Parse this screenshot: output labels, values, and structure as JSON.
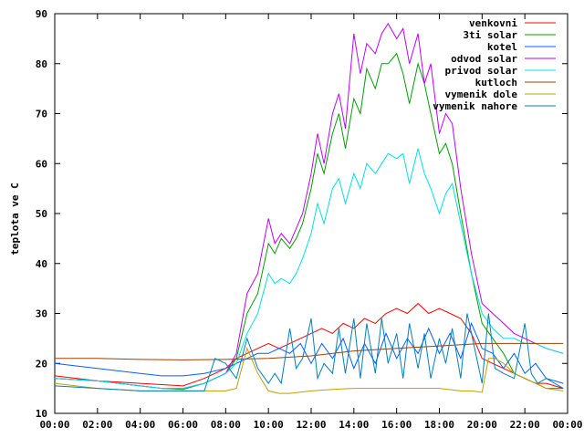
{
  "chart_data": {
    "type": "line",
    "title": "",
    "xlabel": "",
    "ylabel": "teplota ve C",
    "xlim": [
      "00:00",
      "00:00"
    ],
    "ylim": [
      10,
      90
    ],
    "x_ticks": [
      "00:00",
      "02:00",
      "04:00",
      "06:00",
      "08:00",
      "10:00",
      "12:00",
      "14:00",
      "16:00",
      "18:00",
      "20:00",
      "22:00",
      "00:00"
    ],
    "y_ticks": [
      "10",
      "20",
      "30",
      "40",
      "50",
      "60",
      "70",
      "80",
      "90"
    ],
    "grid": false,
    "legend_position": "top-right",
    "x_unit_note": "hours of day",
    "series": [
      {
        "name": "venkovni",
        "color": "#ff0000",
        "x": [
          0,
          2,
          4,
          6,
          7,
          8,
          8.5,
          9,
          9.5,
          10,
          10.5,
          11,
          11.5,
          12,
          12.5,
          13,
          13.5,
          14,
          14.5,
          15,
          15.5,
          16,
          16.5,
          17,
          17.5,
          18,
          18.5,
          19,
          19.5,
          20,
          20.5,
          21,
          21.5,
          22,
          22.5,
          23,
          23.8
        ],
        "y": [
          17.5,
          16.5,
          16,
          15.5,
          17,
          19,
          21,
          22,
          23,
          24,
          23,
          24,
          25,
          26,
          27,
          26,
          28,
          27,
          29,
          28,
          30,
          31,
          30,
          32,
          30,
          31,
          30,
          29,
          26,
          21,
          20,
          19,
          18,
          17,
          16,
          16,
          15
        ]
      },
      {
        "name": "3ti solar",
        "color": "#00a000",
        "x": [
          0,
          2,
          4,
          5,
          6,
          7,
          8,
          8.5,
          9,
          9.5,
          10,
          10.3,
          10.6,
          11,
          11.3,
          11.6,
          12,
          12.3,
          12.6,
          13,
          13.3,
          13.6,
          14,
          14.3,
          14.6,
          15,
          15.3,
          15.6,
          16,
          16.3,
          16.6,
          17,
          17.3,
          17.6,
          18,
          18.3,
          18.6,
          19,
          19.5,
          20,
          20.5,
          21,
          21.5,
          22,
          22.5,
          23,
          23.8
        ],
        "y": [
          17,
          16.5,
          15.5,
          15,
          14.8,
          16,
          18,
          21,
          30,
          34,
          44,
          42,
          45,
          43,
          45,
          48,
          55,
          62,
          58,
          66,
          70,
          63,
          73,
          70,
          79,
          75,
          80,
          80,
          82,
          78,
          72,
          80,
          76,
          70,
          62,
          64,
          60,
          50,
          38,
          28,
          25,
          22,
          18,
          17,
          16,
          15,
          15
        ]
      },
      {
        "name": "kotel",
        "color": "#0060ff",
        "x": [
          0,
          1,
          2,
          3,
          4,
          5,
          6,
          7,
          8,
          8.5,
          9,
          9.5,
          10,
          10.5,
          11,
          11.5,
          12,
          12.5,
          13,
          13.5,
          14,
          14.5,
          15,
          15.5,
          16,
          16.5,
          17,
          17.5,
          18,
          18.5,
          19,
          19.5,
          20,
          20.5,
          21,
          21.5,
          22,
          22.5,
          23,
          23.8
        ],
        "y": [
          20,
          19.5,
          19,
          18.5,
          18,
          17.5,
          17.5,
          18,
          19,
          20,
          21,
          22,
          22,
          23,
          22,
          24,
          20,
          24,
          21,
          25,
          19,
          24,
          20,
          26,
          21,
          25,
          22,
          27,
          22,
          26,
          21,
          28,
          23,
          22,
          19,
          22,
          18,
          20,
          17,
          16
        ]
      },
      {
        "name": "odvod solar",
        "color": "#c000ff",
        "x": [
          0,
          2,
          4,
          5,
          6,
          7,
          8,
          8.5,
          9,
          9.5,
          10,
          10.3,
          10.6,
          11,
          11.3,
          11.6,
          12,
          12.3,
          12.6,
          13,
          13.3,
          13.6,
          14,
          14.3,
          14.6,
          15,
          15.3,
          15.6,
          16,
          16.3,
          16.6,
          17,
          17.3,
          17.6,
          18,
          18.3,
          18.6,
          19,
          19.5,
          20,
          20.5,
          21,
          21.5,
          22,
          22.5,
          23,
          23.8
        ],
        "y": [
          17,
          16.5,
          15.5,
          15,
          15,
          16,
          18,
          22,
          34,
          38,
          49,
          44,
          46,
          44,
          47,
          50,
          58,
          66,
          60,
          70,
          74,
          67,
          86,
          78,
          84,
          82,
          86,
          88,
          85,
          87,
          80,
          86,
          76,
          80,
          66,
          70,
          68,
          55,
          42,
          32,
          30,
          28,
          26,
          25,
          24,
          23,
          22
        ]
      },
      {
        "name": "privod solar",
        "color": "#00e0e0",
        "x": [
          0,
          2,
          4,
          5,
          6,
          7,
          8,
          8.5,
          9,
          9.5,
          10,
          10.3,
          10.6,
          11,
          11.3,
          11.6,
          12,
          12.3,
          12.6,
          13,
          13.3,
          13.6,
          14,
          14.3,
          14.6,
          15,
          15.3,
          15.6,
          16,
          16.3,
          16.6,
          17,
          17.3,
          17.6,
          18,
          18.3,
          18.6,
          19,
          19.5,
          20,
          20.5,
          21,
          21.5,
          22,
          22.5,
          23,
          23.8
        ],
        "y": [
          17,
          16.5,
          15.5,
          15,
          15,
          16,
          18,
          20,
          26,
          30,
          38,
          36,
          37,
          36,
          38,
          41,
          46,
          52,
          48,
          55,
          57,
          52,
          58,
          55,
          60,
          58,
          60,
          62,
          61,
          62,
          56,
          63,
          58,
          55,
          50,
          54,
          56,
          48,
          38,
          30,
          27,
          25,
          25,
          24,
          24,
          23,
          22
        ]
      },
      {
        "name": "kutloch",
        "color": "#a04000",
        "x": [
          0,
          2,
          4,
          6,
          8,
          10,
          12,
          14,
          16,
          18,
          20,
          22,
          23.8
        ],
        "y": [
          21,
          21,
          20.8,
          20.7,
          20.8,
          21,
          21.5,
          22.5,
          23,
          23.5,
          24,
          24,
          24
        ]
      },
      {
        "name": "vymenik dole",
        "color": "#c0a000",
        "x": [
          0,
          2,
          4,
          6,
          7,
          8,
          8.5,
          9,
          9.5,
          10,
          10.5,
          11,
          12,
          13,
          14,
          15,
          16,
          17,
          18,
          19,
          19.5,
          20,
          20.3,
          20.6,
          21,
          21.5,
          22,
          22.5,
          23,
          23.8
        ],
        "y": [
          16,
          15,
          14.5,
          14.5,
          14.5,
          14.5,
          15,
          23,
          18,
          14.5,
          14,
          14,
          14.5,
          14.8,
          15,
          15,
          15,
          15,
          15,
          14.5,
          14.5,
          14.2,
          21,
          21,
          20,
          18,
          17,
          16,
          15,
          14.5
        ]
      },
      {
        "name": "vymenik nahore",
        "color": "#0080c0",
        "x": [
          0,
          2,
          4,
          6,
          7,
          7.5,
          8,
          8.5,
          9,
          9.5,
          10,
          10.3,
          10.6,
          11,
          11.3,
          11.6,
          12,
          12.3,
          12.6,
          13,
          13.3,
          13.6,
          14,
          14.3,
          14.6,
          15,
          15.3,
          15.6,
          16,
          16.3,
          16.6,
          17,
          17.3,
          17.6,
          18,
          18.3,
          18.6,
          19,
          19.3,
          19.6,
          20,
          20.3,
          20.6,
          21,
          21.5,
          22,
          22.3,
          22.6,
          23,
          23.8
        ],
        "y": [
          15.5,
          15,
          14.5,
          14.5,
          14.5,
          21,
          20,
          17,
          25,
          19,
          16,
          18,
          16,
          27,
          19,
          21,
          29,
          17,
          20,
          18,
          27,
          18,
          29,
          17,
          28,
          18,
          29,
          20,
          26,
          17,
          28,
          19,
          26,
          17,
          25,
          20,
          27,
          17,
          30,
          24,
          16,
          30,
          19,
          18,
          17,
          28,
          18,
          16,
          17,
          15
        ]
      }
    ]
  }
}
